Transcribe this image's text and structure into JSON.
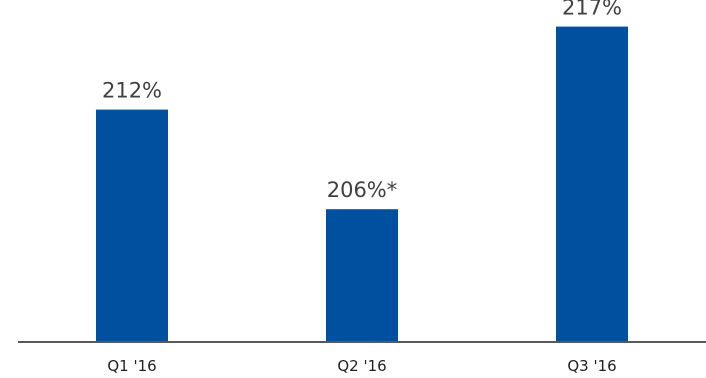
{
  "chart_data": {
    "type": "bar",
    "categories": [
      "Q1 '16",
      "Q2 '16",
      "Q3 '16"
    ],
    "values": [
      212,
      206,
      217
    ],
    "data_labels": [
      "212%",
      "206%*",
      "217%"
    ],
    "title": "",
    "xlabel": "",
    "ylabel": "",
    "ylim": [
      198,
      218
    ],
    "grid": false,
    "legend": "none",
    "colors": {
      "bar": "#0050a0",
      "axis": "#595959"
    }
  }
}
